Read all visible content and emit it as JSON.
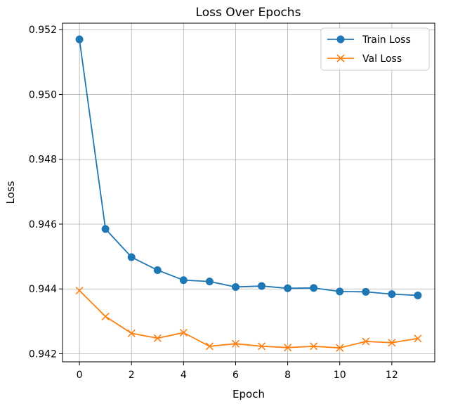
{
  "chart_data": {
    "type": "line",
    "title": "Loss Over Epochs",
    "xlabel": "Epoch",
    "ylabel": "Loss",
    "xlim": [
      -0.65,
      13.65
    ],
    "ylim": [
      0.94175,
      0.9522
    ],
    "xticks": [
      0,
      2,
      4,
      6,
      8,
      10,
      12
    ],
    "xtick_labels": [
      "0",
      "2",
      "4",
      "6",
      "8",
      "10",
      "12"
    ],
    "yticks": [
      0.942,
      0.944,
      0.946,
      0.948,
      0.95,
      0.952
    ],
    "ytick_labels": [
      "0.942",
      "0.944",
      "0.946",
      "0.948",
      "0.950",
      "0.952"
    ],
    "grid": true,
    "legend_position": "upper right",
    "x": [
      0,
      1,
      2,
      3,
      4,
      5,
      6,
      7,
      8,
      9,
      10,
      11,
      12,
      13
    ],
    "series": [
      {
        "name": "Train Loss",
        "color": "#1f77b4",
        "marker": "circle",
        "values": [
          0.9517,
          0.94585,
          0.94498,
          0.94458,
          0.94427,
          0.94423,
          0.94406,
          0.94409,
          0.94402,
          0.94403,
          0.94392,
          0.94391,
          0.94384,
          0.9438
        ]
      },
      {
        "name": "Val Loss",
        "color": "#ff7f0e",
        "marker": "x",
        "values": [
          0.94395,
          0.94315,
          0.94263,
          0.94248,
          0.94265,
          0.94223,
          0.94231,
          0.94223,
          0.94219,
          0.94223,
          0.94218,
          0.94238,
          0.94234,
          0.94247
        ]
      }
    ]
  }
}
